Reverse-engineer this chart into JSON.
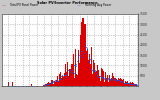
{
  "title": "Solar PV/Inverter Performance",
  "subtitle": "Total PV Panel & Running Average Power Output",
  "bar_color": "#dd0000",
  "avg_color": "#0055ff",
  "bg_color": "#c8c8c8",
  "plot_bg": "#ffffff",
  "grid_color": "#999999",
  "ylim": [
    0,
    3500
  ],
  "n_bars": 200,
  "y_ticks": [
    500,
    1000,
    1500,
    2000,
    2500,
    3000,
    3500
  ]
}
